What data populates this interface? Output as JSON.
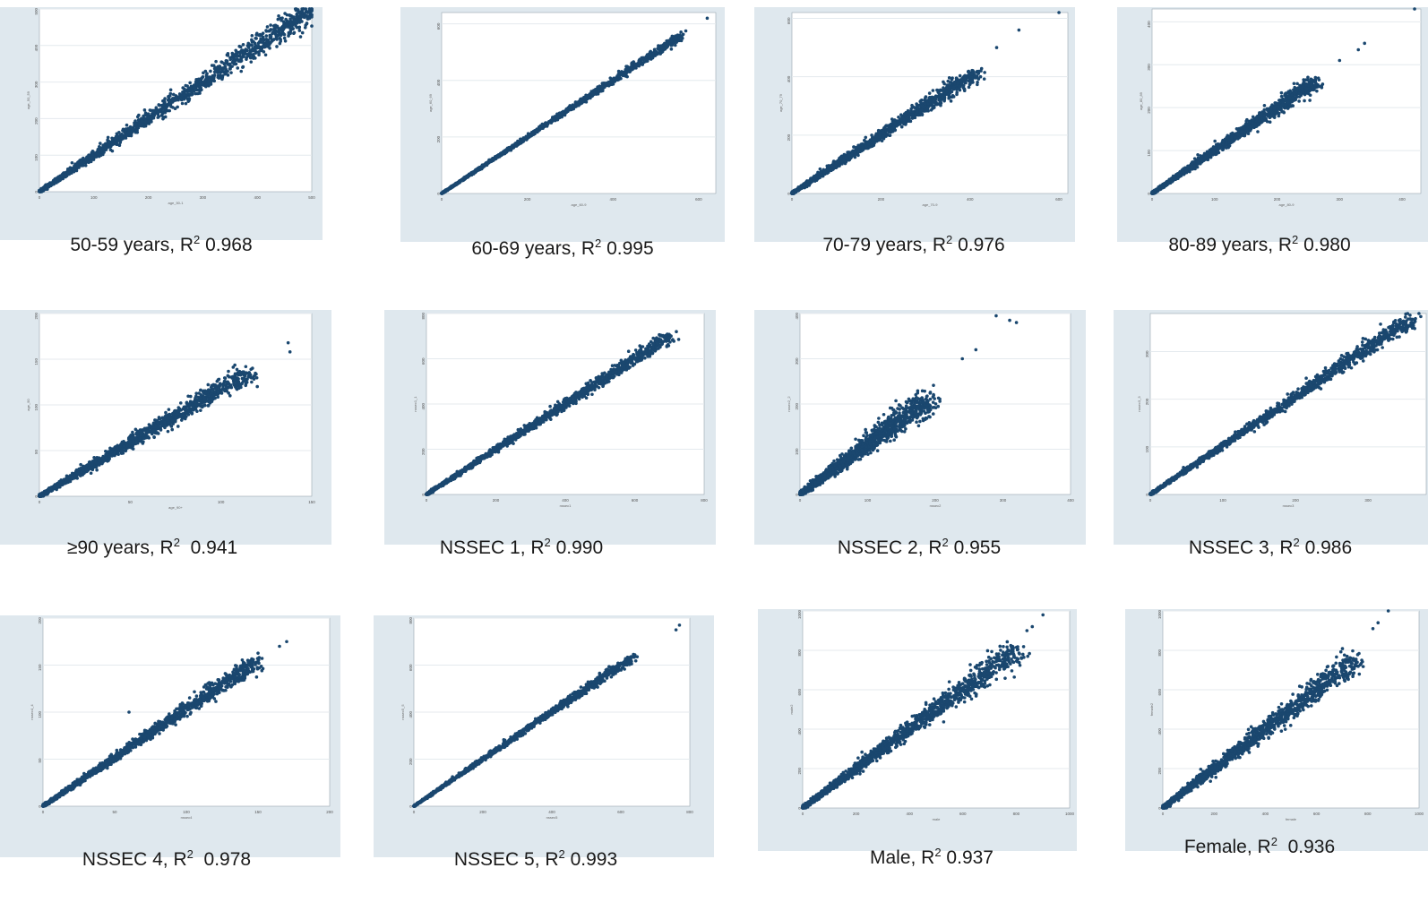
{
  "chart_data": [
    {
      "type": "scatter",
      "caption": {
        "group": "50-59 years",
        "r2_prefix": ", R",
        "r2_exp": "2",
        "r2_value": " 0.968"
      },
      "axes": {
        "xlabel": "age_50-1",
        "ylabel": "age_50_59",
        "xticks": [
          "0",
          "100",
          "200",
          "300",
          "400",
          "500"
        ],
        "yticks": [
          "0",
          "100",
          "200",
          "300",
          "400",
          "500"
        ]
      },
      "xlim": [
        0,
        500
      ],
      "ylim": [
        0,
        500
      ],
      "grid": true,
      "color": "#1a476f",
      "points": [
        [
          0,
          0
        ],
        [
          480,
          495
        ],
        [
          500,
          500
        ]
      ],
      "spread": 0.068,
      "density": "heavy",
      "outliers": [
        [
          470,
          500
        ]
      ]
    },
    {
      "type": "scatter",
      "caption": {
        "group": "60-69 years",
        "r2_prefix": ", R",
        "r2_exp": "2",
        "r2_value": " 0.995"
      },
      "axes": {
        "xlabel": "age_60-9",
        "ylabel": "age_60_69",
        "xticks": [
          "0",
          "200",
          "400",
          "600"
        ],
        "yticks": [
          "0",
          "200",
          "400",
          "600"
        ]
      },
      "xlim": [
        0,
        640
      ],
      "ylim": [
        0,
        640
      ],
      "grid": true,
      "color": "#1a476f",
      "points": [
        [
          0,
          0
        ],
        [
          560,
          560
        ]
      ],
      "spread": 0.022,
      "density": "heavy",
      "outliers": [
        [
          620,
          620
        ],
        [
          570,
          575
        ],
        [
          540,
          555
        ],
        [
          480,
          490
        ]
      ]
    },
    {
      "type": "scatter",
      "caption": {
        "group": "70-79 years",
        "r2_prefix": ", R",
        "r2_exp": "2",
        "r2_value": " 0.976"
      },
      "axes": {
        "xlabel": "age_70-9",
        "ylabel": "age_70_79",
        "xticks": [
          "0",
          "200",
          "400",
          "600"
        ],
        "yticks": [
          "0",
          "200",
          "400",
          "600"
        ]
      },
      "xlim": [
        0,
        620
      ],
      "ylim": [
        0,
        620
      ],
      "grid": true,
      "color": "#1a476f",
      "points": [
        [
          0,
          0
        ],
        [
          420,
          420
        ]
      ],
      "spread": 0.05,
      "density": "heavy",
      "outliers": [
        [
          600,
          620
        ],
        [
          510,
          560
        ],
        [
          460,
          500
        ]
      ]
    },
    {
      "type": "scatter",
      "caption": {
        "group": "80-89 years",
        "r2_prefix": ", R",
        "r2_exp": "2",
        "r2_value": " 0.980"
      },
      "axes": {
        "xlabel": "age_80-9",
        "ylabel": "age_80_89",
        "xticks": [
          "0",
          "100",
          "200",
          "300",
          "400"
        ],
        "yticks": [
          "0",
          "100",
          "200",
          "300",
          "400"
        ]
      },
      "xlim": [
        0,
        430
      ],
      "ylim": [
        0,
        430
      ],
      "grid": true,
      "color": "#1a476f",
      "points": [
        [
          0,
          0
        ],
        [
          260,
          260
        ]
      ],
      "spread": 0.045,
      "density": "heavy",
      "outliers": [
        [
          420,
          430
        ],
        [
          340,
          350
        ],
        [
          330,
          335
        ],
        [
          300,
          310
        ]
      ]
    },
    {
      "type": "scatter",
      "caption": {
        "group": "≥90 years",
        "r2_prefix": ", R",
        "r2_exp": "2",
        "r2_value": "  0.941"
      },
      "axes": {
        "xlabel": "age_90+",
        "ylabel": "age_90",
        "xticks": [
          "0",
          "50",
          "100",
          "150"
        ],
        "yticks": [
          "0",
          "50",
          "100",
          "150",
          "200"
        ]
      },
      "xlim": [
        0,
        150
      ],
      "ylim": [
        0,
        200
      ],
      "grid": true,
      "color": "#1a476f",
      "points": [
        [
          0,
          0
        ],
        [
          115,
          135
        ]
      ],
      "spread": 0.07,
      "density": "heavy",
      "outliers": [
        [
          137,
          168
        ],
        [
          138,
          158
        ],
        [
          120,
          120
        ],
        [
          105,
          110
        ]
      ]
    },
    {
      "type": "scatter",
      "caption": {
        "group": "NSSEC 1",
        "r2_prefix": ", R",
        "r2_exp": "2",
        "r2_value": " 0.990"
      },
      "axes": {
        "xlabel": "nssec1",
        "ylabel": "nssec1_1",
        "xticks": [
          "0",
          "200",
          "400",
          "600",
          "800"
        ],
        "yticks": [
          "0",
          "200",
          "400",
          "600",
          "800"
        ]
      },
      "xlim": [
        0,
        800
      ],
      "ylim": [
        0,
        800
      ],
      "grid": true,
      "color": "#1a476f",
      "points": [
        [
          0,
          0
        ],
        [
          700,
          700
        ]
      ],
      "spread": 0.04,
      "density": "heavy",
      "outliers": [
        [
          720,
          720
        ],
        [
          700,
          690
        ]
      ]
    },
    {
      "type": "scatter",
      "caption": {
        "group": "NSSEC 2",
        "r2_prefix": ", R",
        "r2_exp": "2",
        "r2_value": " 0.955"
      },
      "axes": {
        "xlabel": "nssec2",
        "ylabel": "nssec2_2",
        "xticks": [
          "0",
          "100",
          "200",
          "300",
          "400"
        ],
        "yticks": [
          "0",
          "100",
          "200",
          "300",
          "400"
        ]
      },
      "xlim": [
        0,
        400
      ],
      "ylim": [
        0,
        400
      ],
      "grid": true,
      "color": "#1a476f",
      "points": [
        [
          0,
          0
        ],
        [
          190,
          210
        ]
      ],
      "spread": 0.08,
      "density": "heavy",
      "outliers": [
        [
          290,
          395
        ],
        [
          310,
          385
        ],
        [
          320,
          380
        ],
        [
          240,
          300
        ],
        [
          260,
          320
        ]
      ]
    },
    {
      "type": "scatter",
      "caption": {
        "group": "NSSEC 3",
        "r2_prefix": ", R",
        "r2_exp": "2",
        "r2_value": " 0.986"
      },
      "axes": {
        "xlabel": "nssec3",
        "ylabel": "nssec3_3",
        "xticks": [
          "0",
          "100",
          "200",
          "300",
          "400"
        ],
        "yticks": [
          "0",
          "100",
          "200",
          "300",
          "400"
        ]
      },
      "xlim": [
        0,
        380
      ],
      "ylim": [
        0,
        380
      ],
      "grid": true,
      "color": "#1a476f",
      "points": [
        [
          0,
          0
        ],
        [
          360,
          370
        ]
      ],
      "spread": 0.045,
      "density": "heavy",
      "outliers": [
        [
          370,
          380
        ],
        [
          340,
          350
        ]
      ]
    },
    {
      "type": "scatter",
      "caption": {
        "group": "NSSEC 4",
        "r2_prefix": ", R",
        "r2_exp": "2",
        "r2_value": "  0.978"
      },
      "axes": {
        "xlabel": "nssec4",
        "ylabel": "nssec4_4",
        "xticks": [
          "0",
          "50",
          "100",
          "150",
          "200"
        ],
        "yticks": [
          "0",
          "50",
          "100",
          "150",
          "200"
        ]
      },
      "xlim": [
        0,
        200
      ],
      "ylim": [
        0,
        200
      ],
      "grid": true,
      "color": "#1a476f",
      "points": [
        [
          0,
          0
        ],
        [
          150,
          155
        ]
      ],
      "spread": 0.045,
      "density": "heavy",
      "outliers": [
        [
          170,
          175
        ],
        [
          165,
          170
        ],
        [
          60,
          100
        ]
      ]
    },
    {
      "type": "scatter",
      "caption": {
        "group": "NSSEC 5",
        "r2_prefix": ", R",
        "r2_exp": "2",
        "r2_value": " 0.993"
      },
      "axes": {
        "xlabel": "nssec5",
        "ylabel": "nssec5_5",
        "xticks": [
          "0",
          "200",
          "400",
          "600",
          "800"
        ],
        "yticks": [
          "0",
          "200",
          "400",
          "600",
          "800"
        ]
      },
      "xlim": [
        0,
        800
      ],
      "ylim": [
        0,
        800
      ],
      "grid": true,
      "color": "#1a476f",
      "points": [
        [
          0,
          0
        ],
        [
          640,
          640
        ]
      ],
      "spread": 0.025,
      "density": "heavy",
      "outliers": [
        [
          770,
          770
        ],
        [
          760,
          750
        ],
        [
          610,
          600
        ]
      ]
    },
    {
      "type": "scatter",
      "caption": {
        "group": "Male",
        "r2_prefix": ", R",
        "r2_exp": "2",
        "r2_value": " 0.937"
      },
      "axes": {
        "xlabel": "male",
        "ylabel": "male2",
        "xticks": [
          "0",
          "200",
          "400",
          "600",
          "800",
          "1000"
        ],
        "yticks": [
          "0",
          "200",
          "400",
          "600",
          "800",
          "1000"
        ]
      },
      "xlim": [
        0,
        1000
      ],
      "ylim": [
        0,
        1000
      ],
      "grid": true,
      "color": "#1a476f",
      "points": [
        [
          0,
          0
        ],
        [
          800,
          800
        ]
      ],
      "spread": 0.07,
      "density": "heavy",
      "outliers": [
        [
          900,
          980
        ],
        [
          860,
          920
        ],
        [
          840,
          900
        ]
      ]
    },
    {
      "type": "scatter",
      "caption": {
        "group": "Female",
        "r2_prefix": ", R",
        "r2_exp": "2",
        "r2_value": "  0.936"
      },
      "axes": {
        "xlabel": "female",
        "ylabel": "female2",
        "xticks": [
          "0",
          "200",
          "400",
          "600",
          "800",
          "1000"
        ],
        "yticks": [
          "0",
          "200",
          "400",
          "600",
          "800",
          "1000"
        ]
      },
      "xlim": [
        0,
        1000
      ],
      "ylim": [
        0,
        1000
      ],
      "grid": true,
      "color": "#1a476f",
      "points": [
        [
          0,
          0
        ],
        [
          750,
          750
        ]
      ],
      "spread": 0.07,
      "density": "heavy",
      "outliers": [
        [
          880,
          1000
        ],
        [
          840,
          940
        ],
        [
          820,
          910
        ]
      ]
    }
  ]
}
